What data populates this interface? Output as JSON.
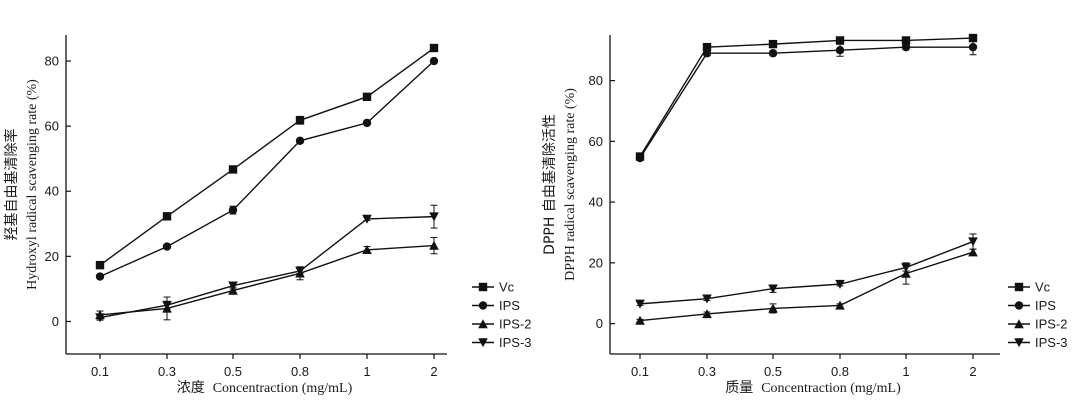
{
  "chart_data": [
    {
      "type": "line",
      "xlabel_cn": "浓度",
      "xlabel_en": "Concentraction (mg/mL)",
      "ylabel_cn": "羟基自由基清除率",
      "ylabel_en": "Hydroxyl radical scavenging rate (%)",
      "categories": [
        "0.1",
        "0.3",
        "0.5",
        "0.8",
        "1",
        "2"
      ],
      "yticks": [
        0,
        20,
        40,
        60,
        80
      ],
      "ylim": [
        -10,
        88
      ],
      "grid": false,
      "legend_position": "right",
      "series": [
        {
          "name": "Vc",
          "marker": "square",
          "values": [
            17.3,
            32.3,
            46.7,
            61.8,
            69.0,
            84.0
          ],
          "errors": [
            0.6,
            0.6,
            0.6,
            1.2,
            0.6,
            0.8
          ]
        },
        {
          "name": "IPS",
          "marker": "circle",
          "values": [
            13.8,
            23.0,
            34.2,
            55.5,
            61.0,
            80.0
          ],
          "errors": [
            0.6,
            0.6,
            1.2,
            0.6,
            0.6,
            0.6
          ]
        },
        {
          "name": "IPS-2",
          "marker": "triangle-up",
          "values": [
            2.0,
            4.0,
            9.5,
            14.8,
            22.0,
            23.3
          ],
          "errors": [
            1.2,
            3.5,
            1.0,
            2.0,
            1.0,
            2.5
          ]
        },
        {
          "name": "IPS-3",
          "marker": "triangle-down",
          "values": [
            1.2,
            5.0,
            11.0,
            15.5,
            31.5,
            32.2
          ],
          "errors": [
            0.8,
            1.2,
            1.0,
            0.8,
            0.5,
            3.5
          ]
        }
      ]
    },
    {
      "type": "line",
      "xlabel_cn": "质量",
      "xlabel_en": "Concentraction (mg/mL)",
      "ylabel_cn": "DPPH  自由基清除活性",
      "ylabel_en": "DPPH radical scavenging rate (%)",
      "categories": [
        "0.1",
        "0.3",
        "0.5",
        "0.8",
        "1",
        "2"
      ],
      "yticks": [
        0,
        20,
        40,
        60,
        80
      ],
      "ylim": [
        -10,
        95
      ],
      "grid": false,
      "legend_position": "right",
      "series": [
        {
          "name": "Vc",
          "marker": "square",
          "values": [
            55.0,
            91.0,
            92.0,
            93.2,
            93.2,
            94.0
          ],
          "errors": [
            0.5,
            0.8,
            0.8,
            0.8,
            0.8,
            0.8
          ]
        },
        {
          "name": "IPS",
          "marker": "circle",
          "values": [
            54.5,
            89.0,
            89.0,
            90.0,
            91.0,
            91.0
          ],
          "errors": [
            0.5,
            0.8,
            0.8,
            2.0,
            0.8,
            2.5
          ]
        },
        {
          "name": "IPS-2",
          "marker": "triangle-up",
          "values": [
            1.0,
            3.2,
            5.0,
            6.0,
            16.5,
            23.5
          ],
          "errors": [
            0.4,
            0.6,
            1.5,
            0.5,
            3.5,
            1.0
          ]
        },
        {
          "name": "IPS-3",
          "marker": "triangle-down",
          "values": [
            6.5,
            8.2,
            11.5,
            13.0,
            18.5,
            27.0
          ],
          "errors": [
            0.5,
            0.6,
            1.2,
            0.6,
            1.2,
            2.5
          ]
        }
      ]
    }
  ]
}
